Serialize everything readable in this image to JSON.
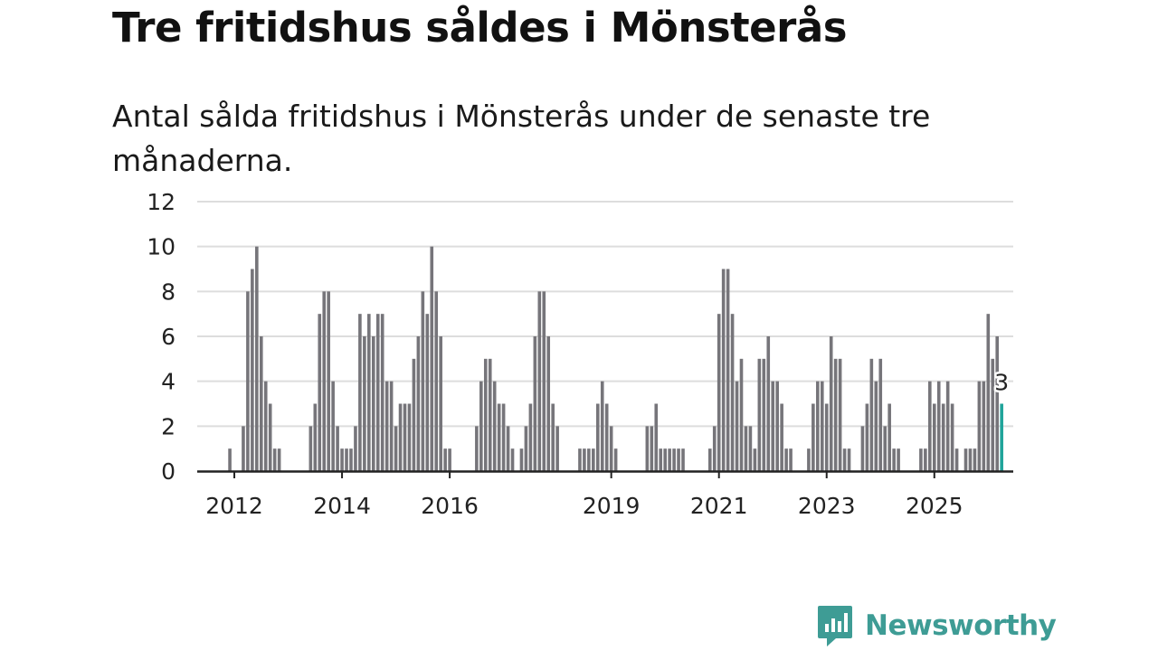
{
  "title": "Tre fritidshus såldes i Mönsterås",
  "subtitle": "Antal sålda fritidshus i Mönsterås under de senaste tre månaderna.",
  "colors": {
    "bar": "#76757a",
    "highlight": "#21a49b",
    "grid": "#dddddd",
    "axis": "#222222",
    "brand": "#3e9c95"
  },
  "brand": {
    "name": "Newsworthy",
    "icon": "newsworthy-logo-icon"
  },
  "chart_data": {
    "type": "bar",
    "title": "Tre fritidshus såldes i Mönsterås",
    "xlabel": "",
    "ylabel": "",
    "ylim": [
      0,
      12
    ],
    "yticks": [
      "0",
      "2",
      "4",
      "6",
      "8",
      "10",
      "12"
    ],
    "grid": true,
    "x_start": "2011-01",
    "series_unit": "month (rolling three-month sum)",
    "xticks": [
      {
        "label": "2012",
        "index": 12
      },
      {
        "label": "2014",
        "index": 36
      },
      {
        "label": "2016",
        "index": 60
      },
      {
        "label": "2019",
        "index": 96
      },
      {
        "label": "2021",
        "index": 120
      },
      {
        "label": "2023",
        "index": 144
      },
      {
        "label": "2025",
        "index": 168
      }
    ],
    "values": [
      0,
      0,
      0,
      0,
      0,
      0,
      0,
      0,
      0,
      0,
      0,
      1,
      0,
      0,
      2,
      8,
      9,
      10,
      6,
      4,
      3,
      1,
      1,
      0,
      0,
      0,
      0,
      0,
      0,
      2,
      3,
      7,
      8,
      8,
      4,
      2,
      1,
      1,
      1,
      2,
      7,
      6,
      7,
      6,
      7,
      7,
      4,
      4,
      2,
      3,
      3,
      3,
      5,
      6,
      8,
      7,
      10,
      8,
      6,
      1,
      1,
      0,
      0,
      0,
      0,
      0,
      2,
      4,
      5,
      5,
      4,
      3,
      3,
      2,
      1,
      0,
      1,
      2,
      3,
      6,
      8,
      8,
      6,
      3,
      2,
      0,
      0,
      0,
      0,
      1,
      1,
      1,
      1,
      3,
      4,
      3,
      2,
      1,
      0,
      0,
      0,
      0,
      0,
      0,
      2,
      2,
      3,
      1,
      1,
      1,
      1,
      1,
      1,
      0,
      0,
      0,
      0,
      0,
      1,
      2,
      7,
      9,
      9,
      7,
      4,
      5,
      2,
      2,
      1,
      5,
      5,
      6,
      4,
      4,
      3,
      1,
      1,
      0,
      0,
      0,
      1,
      3,
      4,
      4,
      3,
      6,
      5,
      5,
      1,
      1,
      0,
      0,
      2,
      3,
      5,
      4,
      5,
      2,
      3,
      1,
      1,
      0,
      0,
      0,
      0,
      1,
      1,
      4,
      3,
      4,
      3,
      4,
      3,
      1,
      0,
      1,
      1,
      1,
      4,
      4,
      7,
      5,
      6,
      3
    ],
    "highlight_last": true,
    "last_value_label": "3"
  }
}
